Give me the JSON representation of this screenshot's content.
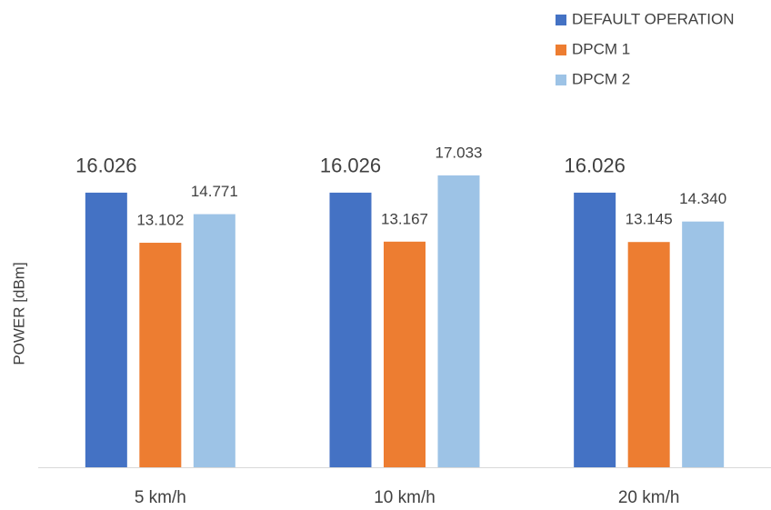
{
  "chart_data": {
    "type": "bar",
    "y_label": "POWER [dBm]",
    "categories": [
      "5 km/h",
      "10 km/h",
      "20 km/h"
    ],
    "series": [
      {
        "name": "DEFAULT OPERATION",
        "color": "#4472c4",
        "values": [
          16.026,
          16.026,
          16.026
        ],
        "value_labels": [
          "16.026",
          "16.026",
          "16.026"
        ]
      },
      {
        "name": "DPCM 1",
        "color": "#ed7d31",
        "values": [
          13.102,
          13.167,
          13.145
        ],
        "value_labels": [
          "13.102",
          "13.167",
          "13.145"
        ]
      },
      {
        "name": "DPCM 2",
        "color": "#9dc3e6",
        "values": [
          14.771,
          17.033,
          14.34
        ],
        "value_labels": [
          "14.771",
          "17.033",
          "14.340"
        ]
      }
    ],
    "ylim": [
      0,
      20
    ],
    "legend": "top-right"
  }
}
